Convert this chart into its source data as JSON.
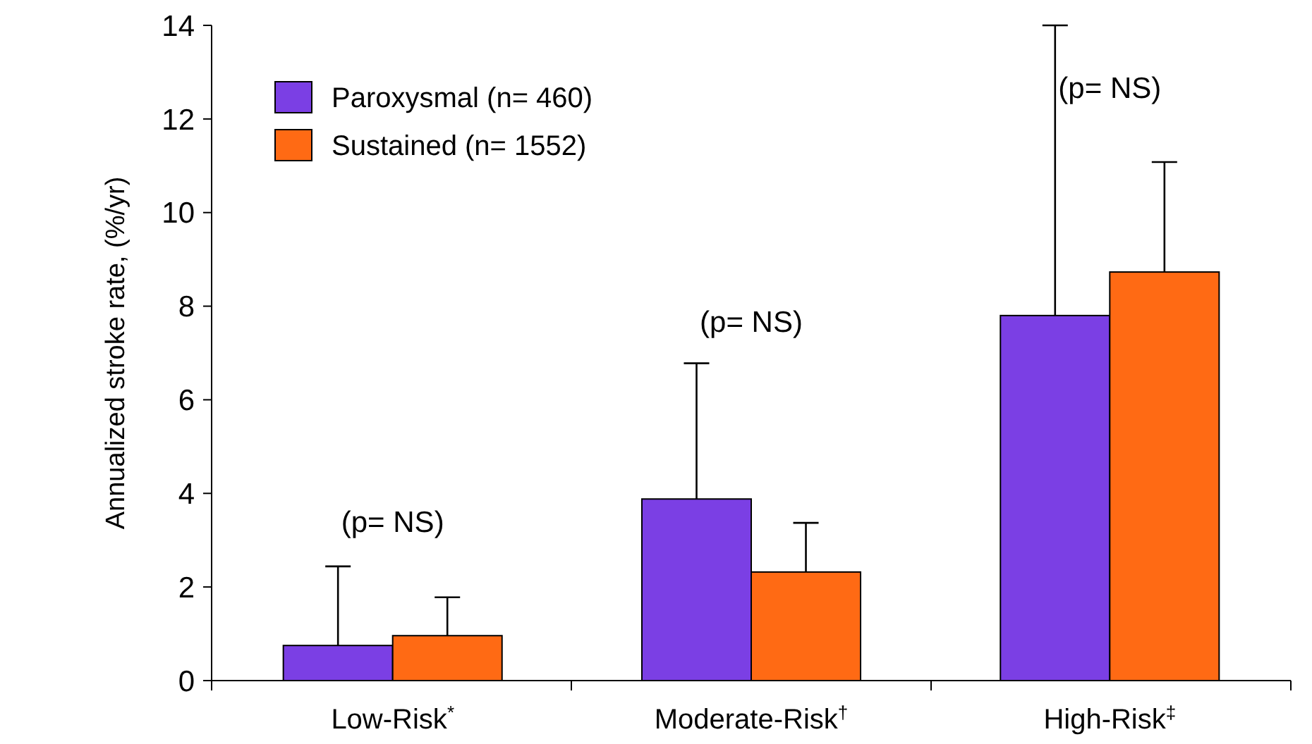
{
  "chart_data": {
    "type": "bar",
    "ylabel": "Annualized stroke rate, (%/yr)",
    "categories": [
      "Low-Risk$^{*}$",
      "Moderate-Risk$^{†}$",
      "High-Risk$^{‡}$"
    ],
    "series": [
      {
        "name": "Paroxysmal (n= 460)",
        "color": "#7b3fe4",
        "values": [
          0.75,
          3.88,
          7.8
        ],
        "errors": [
          [
            0.75,
            2.44
          ],
          [
            3.88,
            6.78
          ],
          [
            7.8,
            14.0
          ]
        ]
      },
      {
        "name": "Sustained (n= 1552)",
        "color": "#ff6a14",
        "values": [
          0.96,
          2.32,
          8.73
        ],
        "errors": [
          [
            0.96,
            1.78
          ],
          [
            2.32,
            3.37
          ],
          [
            8.73,
            11.08
          ]
        ]
      }
    ],
    "ylim": [
      0,
      14
    ],
    "yticks": [
      0,
      2,
      4,
      6,
      8,
      10,
      12,
      14
    ],
    "grid": false,
    "legend": "top left",
    "annotations": [
      "(p= NS)",
      "(p= NS)",
      "(p= NS)"
    ]
  }
}
